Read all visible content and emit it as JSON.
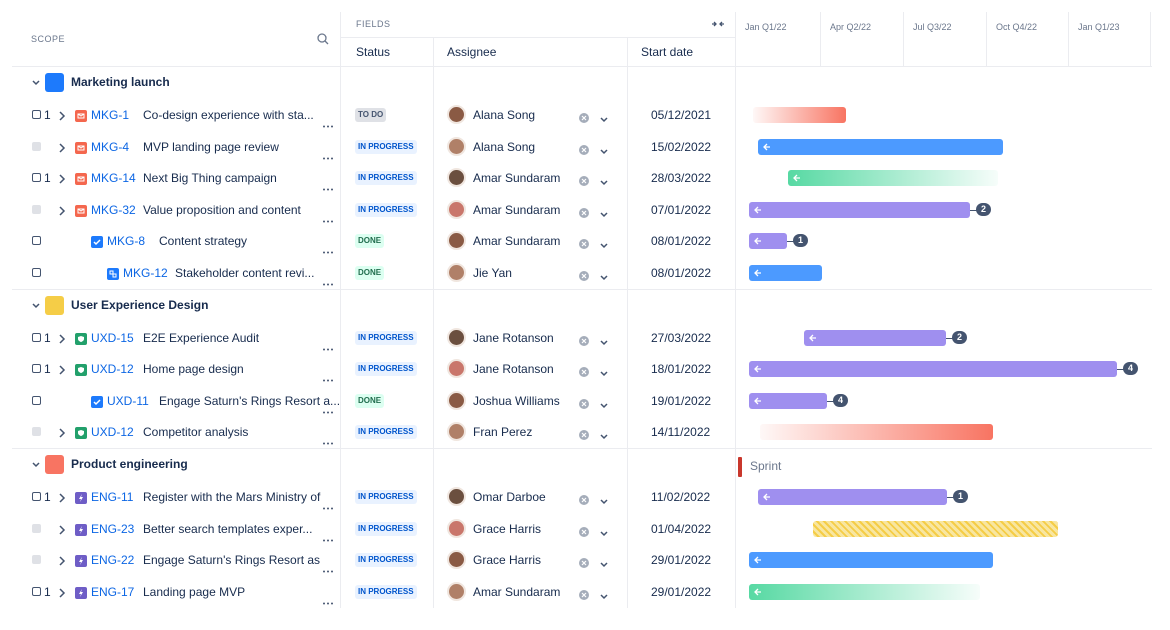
{
  "header": {
    "scope": "SCOPE",
    "fields": "FIELDS",
    "columns": [
      "Status",
      "Assignee",
      "Start date"
    ],
    "timeline": [
      "Jan Q1/22",
      "Apr Q2/22",
      "Jul Q3/22",
      "Oct Q4/22",
      "Jan Q1/23"
    ]
  },
  "sprint": "Sprint",
  "groups": [
    {
      "name": "Marketing launch",
      "rows": [
        {
          "children": "1",
          "key": "MKG-1",
          "summary": "Co-design experience with sta...",
          "status": "TO DO",
          "assignee": "Alana Song",
          "start": "05/12/2021"
        },
        {
          "key": "MKG-4",
          "summary": "MVP landing page review",
          "status": "IN PROGRESS",
          "assignee": "Alana Song",
          "start": "15/02/2022"
        },
        {
          "children": "1",
          "key": "MKG-14",
          "summary": "Next Big Thing campaign",
          "status": "IN PROGRESS",
          "assignee": "Amar Sundaram",
          "start": "28/03/2022"
        },
        {
          "key": "MKG-32",
          "summary": "Value proposition and content",
          "status": "IN PROGRESS",
          "assignee": "Amar Sundaram",
          "start": "07/01/2022",
          "dependencies": "2"
        },
        {
          "key": "MKG-8",
          "summary": "Content strategy",
          "status": "DONE",
          "assignee": "Amar Sundaram",
          "start": "08/01/2022",
          "dependencies": "1"
        },
        {
          "key": "MKG-12",
          "summary": "Stakeholder content revi...",
          "status": "DONE",
          "assignee": "Jie Yan",
          "start": "08/01/2022"
        }
      ]
    },
    {
      "name": "User Experience Design",
      "rows": [
        {
          "children": "1",
          "key": "UXD-15",
          "summary": "E2E Experience Audit",
          "status": "IN PROGRESS",
          "assignee": "Jane Rotanson",
          "start": "27/03/2022",
          "dependencies": "2"
        },
        {
          "children": "1",
          "key": "UXD-12",
          "summary": "Home page design",
          "status": "IN PROGRESS",
          "assignee": "Jane Rotanson",
          "start": "18/01/2022",
          "dependencies": "4"
        },
        {
          "key": "UXD-11",
          "summary": "Engage Saturn's Rings Resort a...",
          "status": "DONE",
          "assignee": "Joshua Williams",
          "start": "19/01/2022",
          "dependencies": "4"
        },
        {
          "key": "UXD-12",
          "summary": "Competitor analysis",
          "status": "IN PROGRESS",
          "assignee": "Fran Perez",
          "start": "14/11/2022"
        }
      ]
    },
    {
      "name": "Product engineering",
      "rows": [
        {
          "children": "1",
          "key": "ENG-11",
          "summary": "Register with the Mars Ministry of",
          "status": "IN PROGRESS",
          "assignee": "Omar Darboe",
          "start": "11/02/2022",
          "dependencies": "1"
        },
        {
          "key": "ENG-23",
          "summary": "Better search templates exper...",
          "status": "IN PROGRESS",
          "assignee": "Grace Harris",
          "start": "01/04/2022"
        },
        {
          "key": "ENG-22",
          "summary": "Engage Saturn's Rings Resort as",
          "status": "IN PROGRESS",
          "assignee": "Grace Harris",
          "start": "29/01/2022"
        },
        {
          "children": "1",
          "key": "ENG-17",
          "summary": "Landing page MVP",
          "status": "IN PROGRESS",
          "assignee": "Amar Sundaram",
          "start": "29/01/2022"
        }
      ]
    }
  ]
}
